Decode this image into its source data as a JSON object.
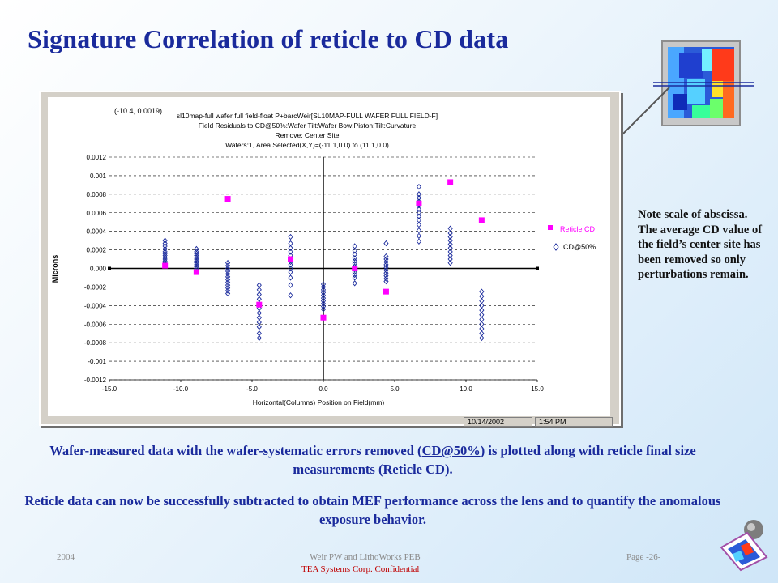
{
  "slide": {
    "title": "Signature Correlation of reticle to CD data",
    "note": "Note scale of abscissa. The average CD value of the field’s center site has been removed so only perturbations remain.",
    "caption1_pre": "Wafer-measured data with the wafer-systematic errors removed (",
    "caption1_link": "CD@50%",
    "caption1_post": ") is plotted along with reticle final size measurements (Reticle CD).",
    "caption2": "Reticle data can now be successfully subtracted to obtain MEF performance across the lens and to quantify the anomalous exposure behavior.",
    "footer_year": "2004",
    "footer_center": "Weir PW and LithoWorks PEB",
    "footer_confidential": "TEA Systems Corp. Confidential",
    "footer_page": "Page -26-",
    "status_date": "10/14/2002",
    "status_time": "1:54 PM",
    "accent_color": "#1a2a9c",
    "confidential_color": "#c00000"
  },
  "chart_data": {
    "type": "scatter",
    "coord_readout": "(-10.4, 0.0019)",
    "header_lines": [
      "sl10map-full wafer full field-float P+barcWeir[SL10MAP-FULL WAFER FULL FIELD-F]",
      "Field Residuals to CD@50%:Wafer Tilt:Wafer Bow:Piston:Tilt:Curvature",
      "Remove: Center Site",
      "Wafers:1, Area Selected(X,Y)=(-11.1,0.0) to (11.1,0.0)"
    ],
    "xlabel": "Horizontal(Columns) Position on Field(mm)",
    "ylabel": "Microns",
    "xlim": [
      -15.0,
      15.0
    ],
    "ylim": [
      -0.0012,
      0.0012
    ],
    "x_ticks": [
      "-15.0",
      "-10.0",
      "-5.0",
      "0.0",
      "5.0",
      "10.0",
      "15.0"
    ],
    "y_ticks": [
      "0.0012",
      "0.001",
      "0.0008",
      "0.0006",
      "0.0004",
      "0.0002",
      "0.000",
      "-0.0002",
      "-0.0004",
      "-0.0006",
      "-0.0008",
      "-0.001",
      "-0.0012"
    ],
    "grid": true,
    "legend_position": "right",
    "series": [
      {
        "name": "Reticle CD",
        "color": "#ff00ff",
        "marker": "square",
        "points": [
          {
            "x": -11.1,
            "y": 3e-05
          },
          {
            "x": -8.9,
            "y": -4e-05
          },
          {
            "x": -6.7,
            "y": 0.00075
          },
          {
            "x": -4.5,
            "y": -0.00039
          },
          {
            "x": -2.3,
            "y": 0.0001
          },
          {
            "x": 0.0,
            "y": -0.00053
          },
          {
            "x": 2.2,
            "y": 0.0
          },
          {
            "x": 4.4,
            "y": -0.00025
          },
          {
            "x": 6.7,
            "y": 0.0007
          },
          {
            "x": 8.9,
            "y": 0.00093
          },
          {
            "x": 11.1,
            "y": 0.00052
          }
        ]
      },
      {
        "name": "CD@50%",
        "color": "#1a2a9c",
        "marker": "diamond",
        "clusters": [
          {
            "x": -11.1,
            "values": [
              0.0003,
              0.00027,
              0.00024,
              0.00021,
              0.00018,
              0.00016,
              0.00014,
              0.00012,
              0.0001,
              8e-05,
              6e-05,
              4e-05
            ]
          },
          {
            "x": -8.9,
            "values": [
              0.00021,
              0.00018,
              0.00016,
              0.00014,
              0.00012,
              0.0001,
              8e-05,
              6e-05,
              4e-05,
              2e-05,
              0.0
            ]
          },
          {
            "x": -6.7,
            "values": [
              6e-05,
              3e-05,
              0.0,
              -3e-05,
              -6e-05,
              -9e-05,
              -0.00012,
              -0.00015,
              -0.00018,
              -0.00021,
              -0.00024,
              -0.00027
            ]
          },
          {
            "x": -4.5,
            "values": [
              -0.00018,
              -0.00023,
              -0.00028,
              -0.00033,
              -0.00038,
              -0.00043,
              -0.00048,
              -0.00053,
              -0.00058,
              -0.00063,
              -0.0007,
              -0.00075
            ]
          },
          {
            "x": -2.3,
            "values": [
              0.00034,
              0.00027,
              0.00022,
              0.00018,
              0.00014,
              0.0001,
              7e-05,
              4e-05,
              0.0,
              -4e-05,
              -0.0001,
              -0.00018,
              -0.00029
            ]
          },
          {
            "x": 0.0,
            "values": [
              -0.00017,
              -0.0002,
              -0.00023,
              -0.00026,
              -0.00029,
              -0.00032,
              -0.00035,
              -0.00038,
              -0.00041,
              -0.00044
            ]
          },
          {
            "x": 2.2,
            "values": [
              0.00024,
              0.00019,
              0.00015,
              0.00011,
              8e-05,
              5e-05,
              2e-05,
              -1e-05,
              -4e-05,
              -7e-05,
              -0.0001,
              -0.00016
            ]
          },
          {
            "x": 4.4,
            "values": [
              0.00027,
              0.00013,
              0.0001,
              7e-05,
              4e-05,
              1e-05,
              -2e-05,
              -5e-05,
              -8e-05,
              -0.00011,
              -0.00014
            ]
          },
          {
            "x": 6.7,
            "values": [
              0.00088,
              0.0008,
              0.00076,
              0.00072,
              0.00068,
              0.00064,
              0.0006,
              0.00056,
              0.00052,
              0.00047,
              0.00041,
              0.00035,
              0.00029
            ]
          },
          {
            "x": 8.9,
            "values": [
              0.00043,
              0.00038,
              0.00034,
              0.0003,
              0.00026,
              0.00022,
              0.00018,
              0.00014,
              0.0001,
              6e-05
            ]
          },
          {
            "x": 11.1,
            "values": [
              -0.00025,
              -0.0003,
              -0.00035,
              -0.0004,
              -0.00045,
              -0.0005,
              -0.00055,
              -0.0006,
              -0.00065,
              -0.0007,
              -0.00075
            ]
          }
        ]
      }
    ]
  }
}
